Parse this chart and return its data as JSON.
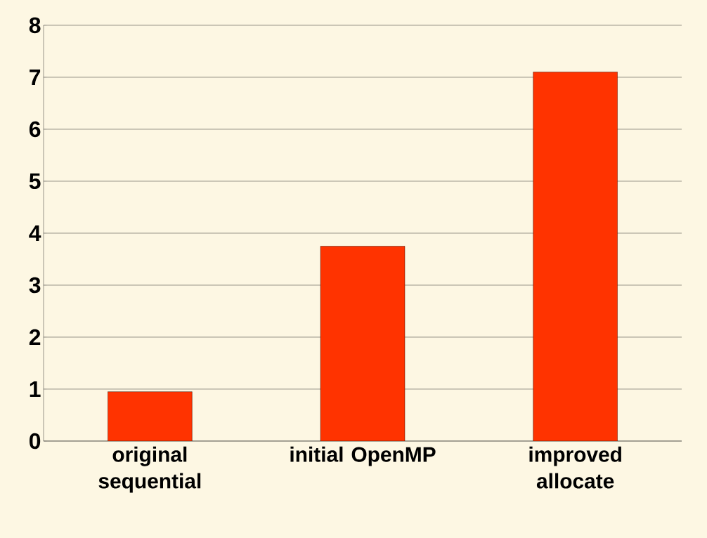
{
  "chart_data": {
    "type": "bar",
    "categories": [
      "original sequential",
      "initial OpenMP",
      "improved allocate"
    ],
    "values": [
      0.95,
      3.75,
      7.1
    ],
    "color": "#ff3300",
    "ylim": [
      0,
      8
    ],
    "yticks": [
      0,
      1,
      2,
      3,
      4,
      5,
      6,
      7,
      8
    ],
    "grid": "y"
  }
}
